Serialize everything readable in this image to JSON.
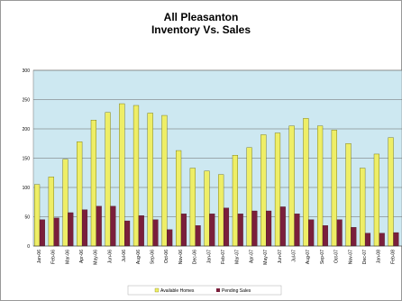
{
  "chart_data": {
    "type": "bar",
    "title": "All Pleasanton",
    "subtitle": "Inventory Vs. Sales",
    "categories": [
      "Jan-06",
      "Feb-06",
      "Mar-06",
      "Apr-06",
      "May-06",
      "Jun-06",
      "Jul-06",
      "Aug-06",
      "Sep-06",
      "Oct-06",
      "Nov-06",
      "Dec-06",
      "Jan-07",
      "Feb-07",
      "Mar-07",
      "Apr-07",
      "May-07",
      "Jun-07",
      "Jul-07",
      "Aug-07",
      "Sep-07",
      "Oct-07",
      "Nov-07",
      "Dec-07",
      "Jan-08",
      "Feb-08"
    ],
    "series": [
      {
        "name": "Available Homes",
        "color": "#EEEE66",
        "values": [
          105,
          118,
          148,
          178,
          215,
          228,
          243,
          240,
          227,
          223,
          163,
          133,
          128,
          122,
          155,
          168,
          190,
          193,
          205,
          218,
          205,
          198,
          175,
          133,
          157,
          185
        ]
      },
      {
        "name": "Pending Sales",
        "color": "#7A1F3B",
        "values": [
          45,
          48,
          57,
          62,
          68,
          68,
          43,
          52,
          45,
          28,
          55,
          35,
          55,
          65,
          55,
          60,
          60,
          67,
          55,
          45,
          35,
          45,
          32,
          22,
          22,
          23
        ]
      }
    ],
    "ylim": [
      0,
      300
    ],
    "yticks": [
      0,
      50,
      100,
      150,
      200,
      250,
      300
    ],
    "xlabel": "",
    "ylabel": "",
    "grid": true,
    "legend_position": "bottom",
    "plot_background": "#CDE8F1"
  }
}
